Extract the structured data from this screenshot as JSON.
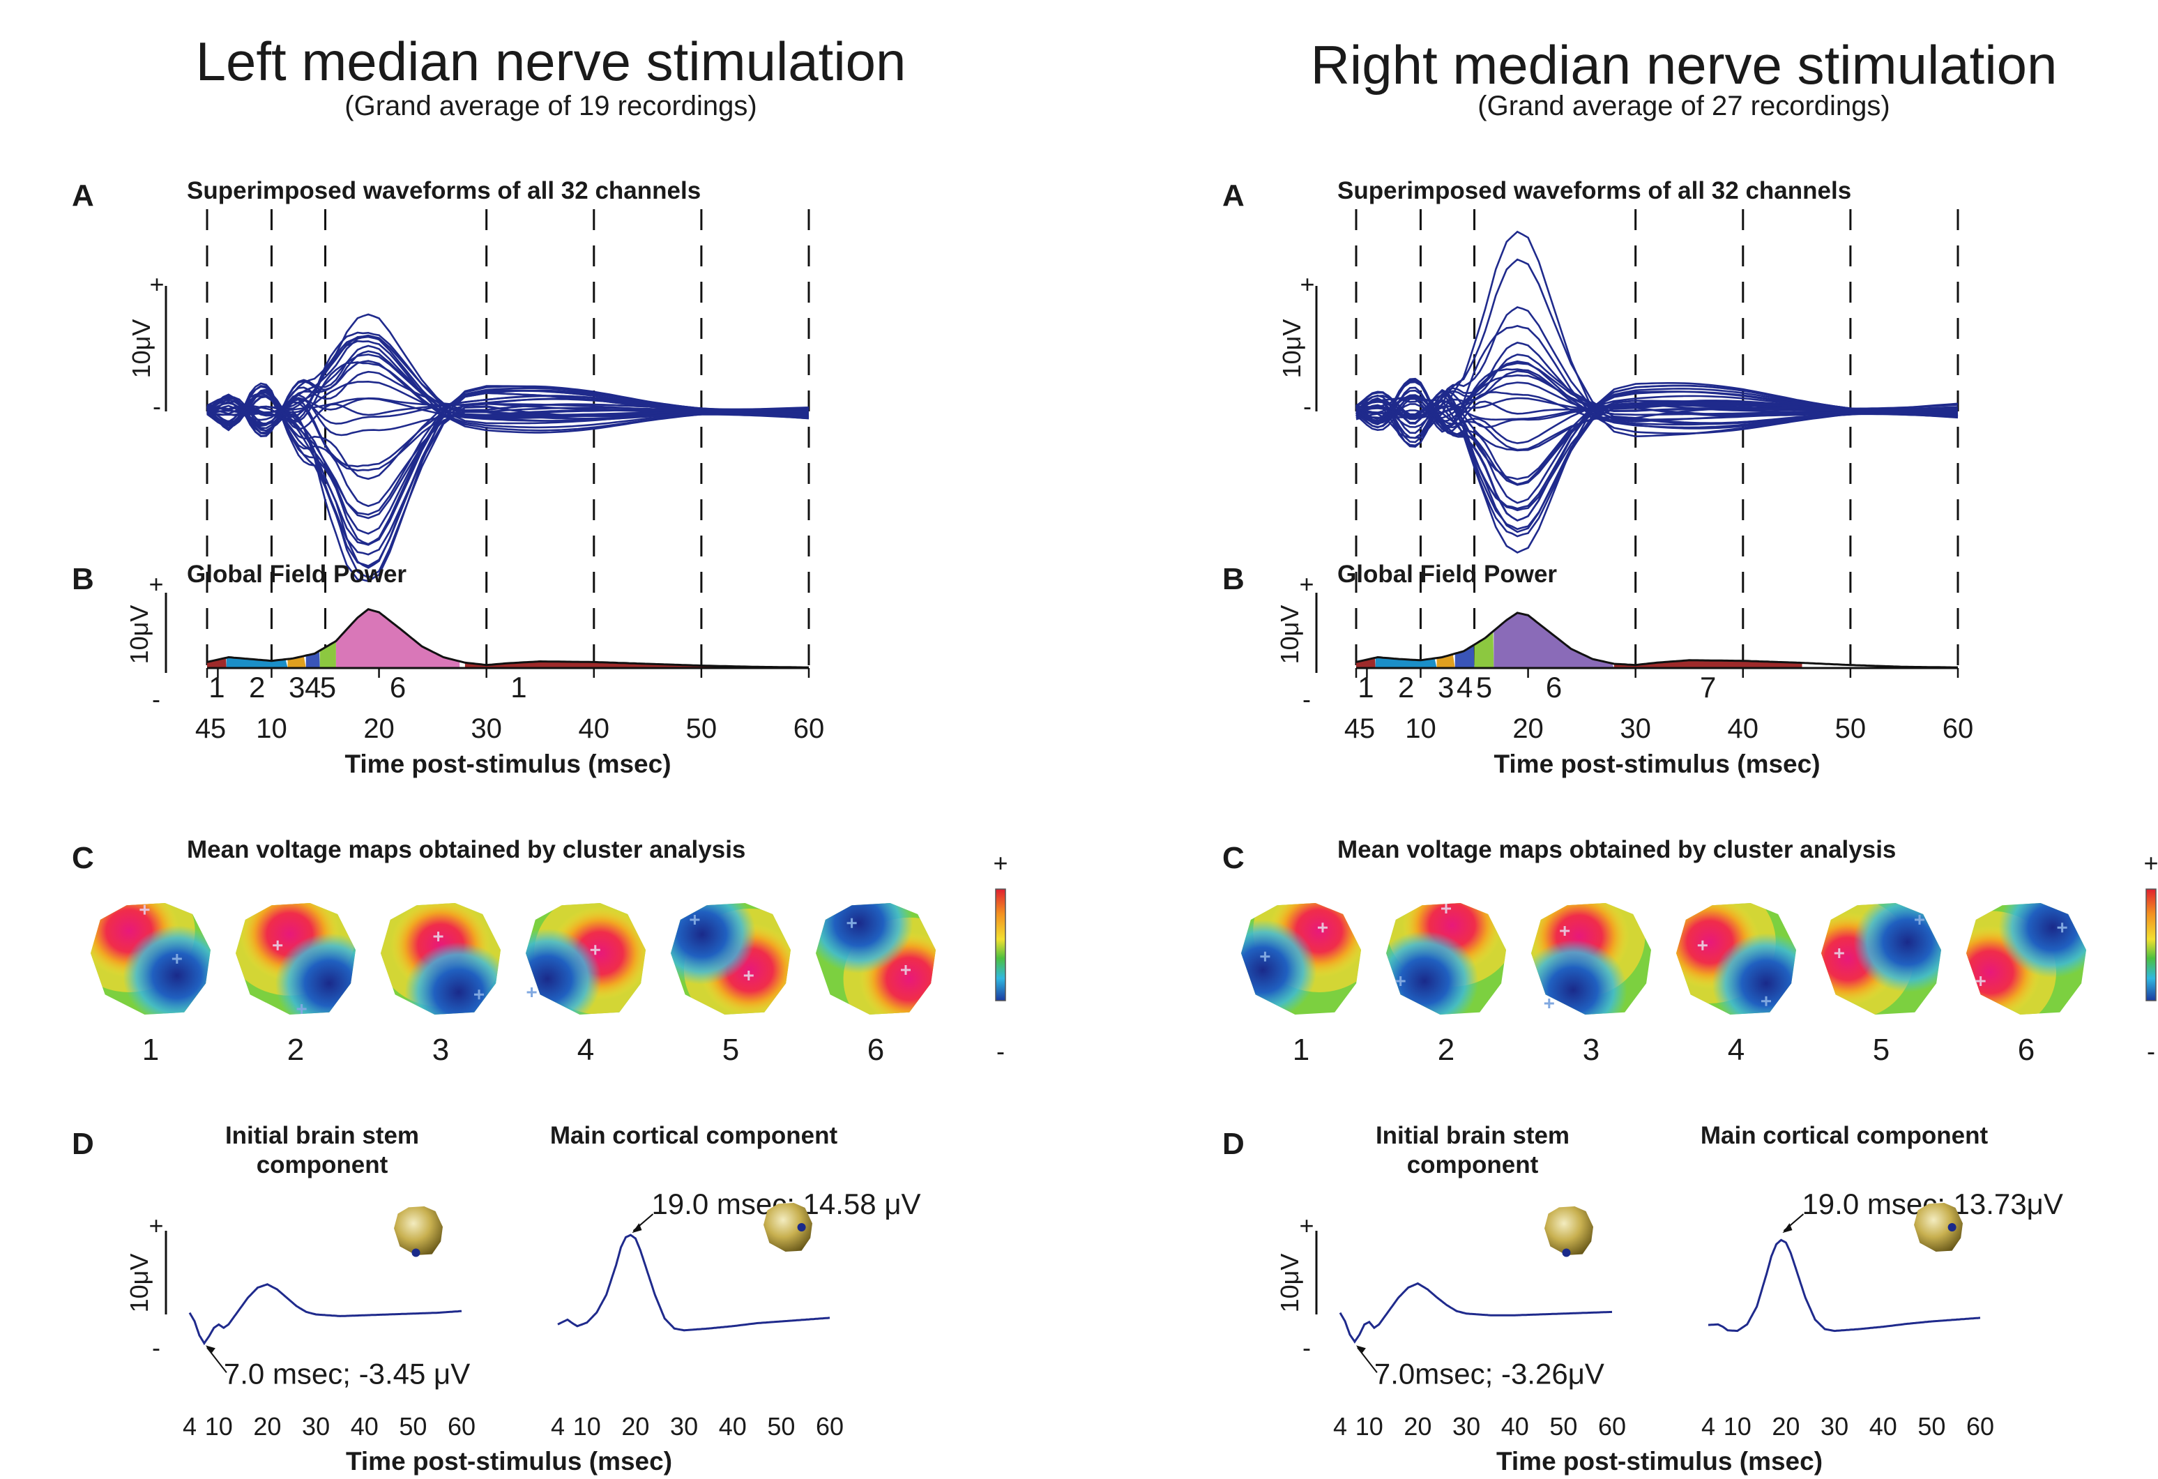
{
  "colors": {
    "waveform": "#1f2a8c",
    "segment_colors": {
      "1": "#9e2a2a",
      "2": "#1b8fc8",
      "3": "#e0a020",
      "4": "#3a55b8",
      "5": "#8cc840",
      "6_left": "#d977b8",
      "6_right": "#8a6bb8",
      "7": "#9e2a2a"
    }
  },
  "panels": [
    {
      "id": "left",
      "title": "Left median nerve stimulation",
      "subtitle": "(Grand average of 19 recordings)",
      "sectionA": {
        "letter": "A",
        "title": "Superimposed waveforms of all 32 channels",
        "ylabel": "10μV",
        "plus": "+",
        "minus": "-"
      },
      "sectionB": {
        "letter": "B",
        "title": "Global Field Power",
        "ylabel": "10μV",
        "plus": "+",
        "minus": "-"
      },
      "sectionC": {
        "letter": "C",
        "title": "Mean voltage maps obtained by cluster analysis",
        "maps": [
          "1",
          "2",
          "3",
          "4",
          "5",
          "6"
        ],
        "scale_plus": "+",
        "scale_minus": "-"
      },
      "sectionD": {
        "letter": "D",
        "brainstem_title_1": "Initial brain stem",
        "brainstem_title_2": "component",
        "cortical_title": "Main cortical component",
        "ylabel": "10μV",
        "plus": "+",
        "minus": "-",
        "brainstem_annotation": "7.0 msec; -3.45 μV",
        "cortical_annotation": "19.0 msec; 14.58 μV",
        "xticks": [
          "4",
          "10",
          "20",
          "30",
          "40",
          "50",
          "60"
        ],
        "xlabel": "Time post-stimulus (msec)"
      }
    },
    {
      "id": "right",
      "title": "Right median nerve stimulation",
      "subtitle": "(Grand average of 27 recordings)",
      "sectionA": {
        "letter": "A",
        "title": "Superimposed waveforms of all 32 channels",
        "ylabel": "10μV",
        "plus": "+",
        "minus": "-"
      },
      "sectionB": {
        "letter": "B",
        "title": "Global Field Power",
        "ylabel": "10μV",
        "plus": "+",
        "minus": "-"
      },
      "sectionC": {
        "letter": "C",
        "title": "Mean voltage maps obtained by cluster analysis",
        "maps": [
          "1",
          "2",
          "3",
          "4",
          "5",
          "6"
        ],
        "scale_plus": "+",
        "scale_minus": "-"
      },
      "sectionD": {
        "letter": "D",
        "brainstem_title_1": "Initial brain stem",
        "brainstem_title_2": "component",
        "cortical_title": "Main cortical component",
        "ylabel": "10μV",
        "plus": "+",
        "minus": "-",
        "brainstem_annotation": "7.0msec; -3.26μV",
        "cortical_annotation": "19.0 msec; 13.73μV",
        "xticks": [
          "4",
          "10",
          "20",
          "30",
          "40",
          "50",
          "60"
        ],
        "xlabel": "Time post-stimulus (msec)"
      }
    }
  ],
  "chart_data": [
    {
      "type": "line",
      "panel": "left",
      "title": "Superimposed waveforms of all 32 channels",
      "xlabel": "Time post-stimulus (msec)",
      "xlim": [
        4,
        60
      ],
      "xticks": [
        "4",
        "5",
        "10",
        "20",
        "30",
        "40",
        "50",
        "60"
      ],
      "segment_boundaries_msec": [
        4,
        10,
        15,
        30,
        40,
        50,
        60
      ],
      "scale_bar": "10μV",
      "n_channels": 32,
      "peak_msec": 19
    },
    {
      "type": "area",
      "panel": "left",
      "title": "Global Field Power",
      "xlabel": "Time post-stimulus (msec)",
      "xlim": [
        4,
        60
      ],
      "xticks": [
        "4",
        "5",
        "10",
        "20",
        "30",
        "40",
        "50",
        "60"
      ],
      "scale_bar": "10μV",
      "x": [
        4,
        6,
        8,
        10,
        12,
        14,
        16,
        18,
        19,
        20,
        22,
        24,
        26,
        28,
        30,
        32,
        35,
        40,
        45,
        50,
        55,
        60
      ],
      "y": [
        1.0,
        1.8,
        1.5,
        1.2,
        1.6,
        2.4,
        4.5,
        8.4,
        9.8,
        9.3,
        6.5,
        3.6,
        1.8,
        0.9,
        0.5,
        0.8,
        1.1,
        1.0,
        0.7,
        0.4,
        0.2,
        0.1
      ],
      "segments": [
        {
          "label": "1",
          "start": 4,
          "end": 5.8
        },
        {
          "label": "2",
          "start": 5.8,
          "end": 11.5
        },
        {
          "label": "3",
          "start": 11.5,
          "end": 13.2
        },
        {
          "label": "4",
          "start": 13.2,
          "end": 14.5
        },
        {
          "label": "5",
          "start": 14.5,
          "end": 16
        },
        {
          "label": "6",
          "start": 16,
          "end": 27.5
        },
        {
          "label": "1",
          "start": 28,
          "end": 60
        }
      ]
    },
    {
      "type": "heatmap",
      "panel": "left",
      "title": "Mean voltage maps obtained by cluster analysis",
      "categories": [
        "1",
        "2",
        "3",
        "4",
        "5",
        "6"
      ],
      "scale": [
        "+",
        "-"
      ]
    },
    {
      "type": "line",
      "panel": "left",
      "title": "Initial brain stem component",
      "xlabel": "Time post-stimulus (msec)",
      "xticks": [
        "4",
        "10",
        "20",
        "30",
        "40",
        "50",
        "60"
      ],
      "annotation": "7.0 msec; -3.45 μV",
      "x": [
        4,
        5,
        6,
        7,
        8,
        9,
        10,
        11,
        12,
        14,
        16,
        18,
        20,
        22,
        24,
        26,
        28,
        30,
        35,
        40,
        45,
        50,
        55,
        60
      ],
      "y": [
        0.2,
        -0.8,
        -2.5,
        -3.45,
        -2.6,
        -1.6,
        -1.2,
        -1.6,
        -1.2,
        0.4,
        2.0,
        3.2,
        3.6,
        3.0,
        2.0,
        1.0,
        0.3,
        0.0,
        -0.2,
        -0.1,
        0.0,
        0.1,
        0.2,
        0.4
      ]
    },
    {
      "type": "line",
      "panel": "left",
      "title": "Main cortical component",
      "xlabel": "Time post-stimulus (msec)",
      "xticks": [
        "4",
        "10",
        "20",
        "30",
        "40",
        "50",
        "60"
      ],
      "annotation": "19.0 msec; 14.58 μV",
      "x": [
        4,
        6,
        7,
        8,
        10,
        12,
        14,
        16,
        17,
        18,
        19,
        20,
        21,
        22,
        24,
        26,
        28,
        30,
        35,
        40,
        45,
        50,
        55,
        60
      ],
      "y": [
        -0.5,
        0.3,
        -0.3,
        -0.8,
        -0.2,
        1.5,
        4.5,
        9.5,
        12.5,
        14.2,
        14.58,
        14.0,
        12.0,
        9.5,
        4.5,
        0.5,
        -1.2,
        -1.5,
        -1.2,
        -0.8,
        -0.3,
        0.0,
        0.3,
        0.6
      ]
    },
    {
      "type": "line",
      "panel": "right",
      "title": "Superimposed waveforms of all 32 channels",
      "xlabel": "Time post-stimulus (msec)",
      "xlim": [
        4,
        60
      ],
      "xticks": [
        "4",
        "5",
        "10",
        "20",
        "30",
        "40",
        "50",
        "60"
      ],
      "segment_boundaries_msec": [
        4,
        10,
        15,
        30,
        40,
        50,
        60
      ],
      "scale_bar": "10μV",
      "n_channels": 32,
      "peak_msec": 19
    },
    {
      "type": "area",
      "panel": "right",
      "title": "Global Field Power",
      "xlabel": "Time post-stimulus (msec)",
      "xlim": [
        4,
        60
      ],
      "xticks": [
        "4",
        "5",
        "10",
        "20",
        "30",
        "40",
        "50",
        "60"
      ],
      "scale_bar": "10μV",
      "x": [
        4,
        6,
        8,
        10,
        12,
        14,
        16,
        18,
        19,
        20,
        22,
        24,
        26,
        28,
        30,
        32,
        35,
        40,
        45,
        50,
        55,
        60
      ],
      "y": [
        1.0,
        1.8,
        1.5,
        1.3,
        1.8,
        2.8,
        5.0,
        8.0,
        9.2,
        8.8,
        6.0,
        3.2,
        1.5,
        0.7,
        0.5,
        0.9,
        1.3,
        1.2,
        0.9,
        0.5,
        0.2,
        0.1
      ],
      "segments": [
        {
          "label": "1",
          "start": 4,
          "end": 5.8
        },
        {
          "label": "2",
          "start": 5.8,
          "end": 11.5
        },
        {
          "label": "3",
          "start": 11.5,
          "end": 13.2
        },
        {
          "label": "4",
          "start": 13.2,
          "end": 15
        },
        {
          "label": "5",
          "start": 15,
          "end": 16.8
        },
        {
          "label": "6",
          "start": 16.8,
          "end": 28
        },
        {
          "label": "7",
          "start": 28,
          "end": 45.5
        }
      ]
    },
    {
      "type": "heatmap",
      "panel": "right",
      "title": "Mean voltage maps obtained by cluster analysis",
      "categories": [
        "1",
        "2",
        "3",
        "4",
        "5",
        "6"
      ],
      "scale": [
        "+",
        "-"
      ]
    },
    {
      "type": "line",
      "panel": "right",
      "title": "Initial brain stem component",
      "xlabel": "Time post-stimulus (msec)",
      "xticks": [
        "4",
        "10",
        "20",
        "30",
        "40",
        "50",
        "60"
      ],
      "annotation": "7.0msec; -3.26μV",
      "x": [
        4,
        5,
        6,
        7,
        8,
        9,
        10,
        11,
        12,
        14,
        16,
        18,
        20,
        22,
        24,
        26,
        28,
        30,
        35,
        40,
        45,
        50,
        55,
        60
      ],
      "y": [
        0.2,
        -0.8,
        -2.4,
        -3.26,
        -2.4,
        -1.2,
        -0.9,
        -1.6,
        -1.2,
        0.4,
        2.0,
        3.2,
        3.7,
        3.0,
        2.0,
        1.1,
        0.4,
        0.1,
        -0.1,
        -0.1,
        0.0,
        0.1,
        0.2,
        0.3
      ]
    },
    {
      "type": "line",
      "panel": "right",
      "title": "Main cortical component",
      "xlabel": "Time post-stimulus (msec)",
      "xticks": [
        "4",
        "10",
        "20",
        "30",
        "40",
        "50",
        "60"
      ],
      "annotation": "19.0 msec; 13.73μV",
      "x": [
        4,
        6,
        7,
        8,
        10,
        12,
        14,
        16,
        17,
        18,
        19,
        20,
        21,
        22,
        24,
        26,
        28,
        30,
        35,
        40,
        45,
        50,
        55,
        60
      ],
      "y": [
        -0.6,
        -0.5,
        -0.9,
        -1.5,
        -1.6,
        -0.5,
        2.5,
        8.0,
        11.0,
        13.0,
        13.73,
        13.3,
        11.5,
        9.0,
        4.0,
        0.3,
        -1.3,
        -1.6,
        -1.3,
        -0.9,
        -0.4,
        0.0,
        0.3,
        0.6
      ]
    }
  ]
}
